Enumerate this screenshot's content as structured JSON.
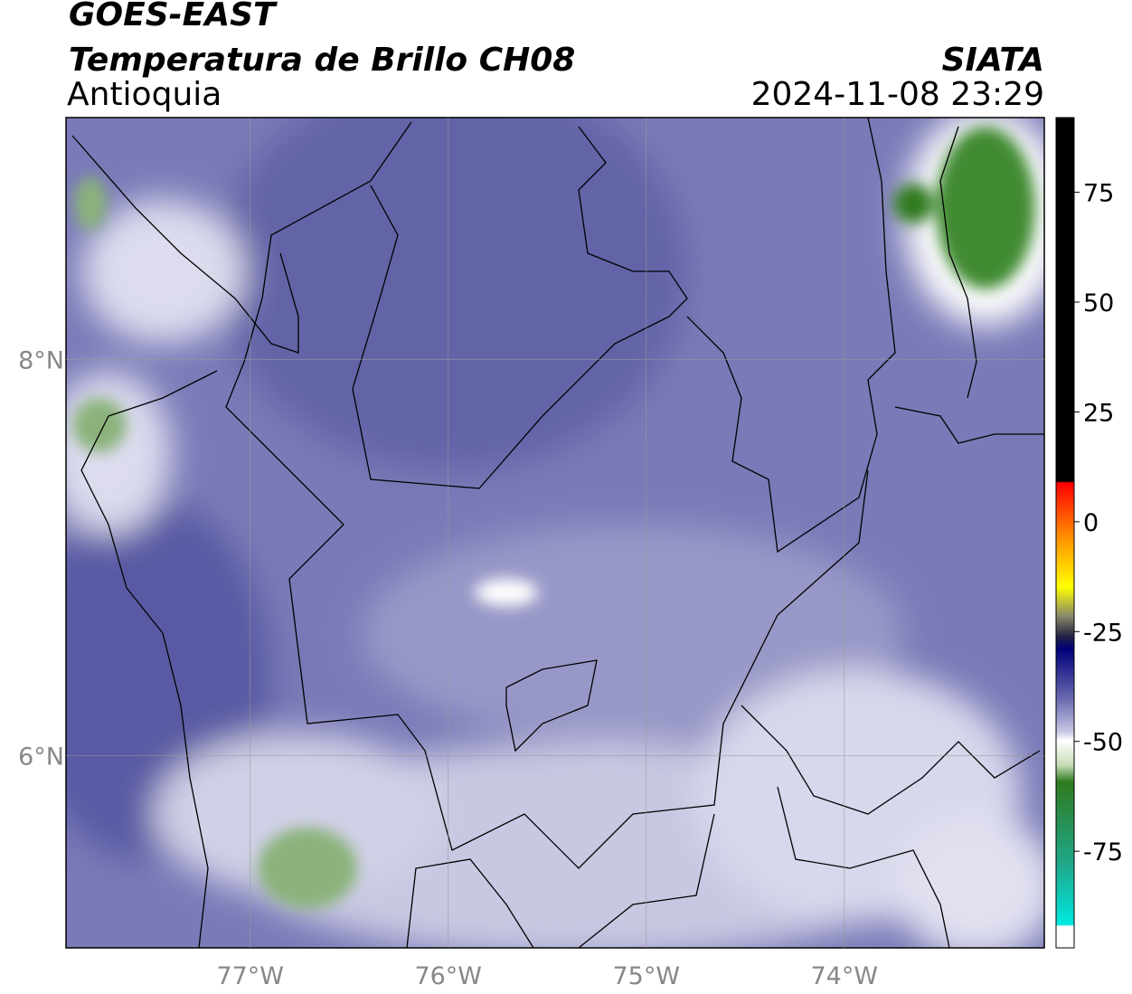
{
  "header": {
    "satellite": "GOES-EAST",
    "product": "Temperatura de Brillo CH08",
    "region": "Antioquia",
    "source": "SIATA",
    "datetime": "2024-11-08 23:29"
  },
  "map": {
    "xlim": [
      -77.93,
      -72.99
    ],
    "ylim": [
      5.03,
      9.22
    ],
    "xticks": [
      {
        "value": -77,
        "label": "77°W"
      },
      {
        "value": -76,
        "label": "76°W"
      },
      {
        "value": -75,
        "label": "75°W"
      },
      {
        "value": -74,
        "label": "74°W"
      }
    ],
    "yticks": [
      {
        "value": 8,
        "label": "8°N"
      },
      {
        "value": 6,
        "label": "6°N"
      }
    ],
    "grid": true
  },
  "colorbar": {
    "ylim": [
      -97,
      92
    ],
    "yticks": [
      75,
      50,
      25,
      0,
      -25,
      -50,
      -75
    ]
  }
}
